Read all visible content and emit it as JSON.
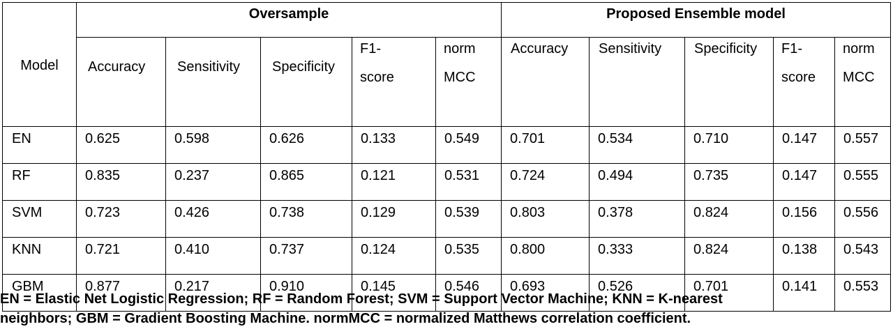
{
  "table": {
    "model_header": "Model",
    "groups": [
      "Oversample",
      "Proposed Ensemble model"
    ],
    "metrics": [
      {
        "line1": "Accuracy",
        "line2": ""
      },
      {
        "line1": "Sensitivity",
        "line2": ""
      },
      {
        "line1": "Specificity",
        "line2": ""
      },
      {
        "line1": "F1-",
        "line2": "score"
      },
      {
        "line1": "norm",
        "line2": "MCC"
      }
    ],
    "rows": [
      {
        "model": "EN",
        "oversample": [
          "0.625",
          "0.598",
          "0.626",
          "0.133",
          "0.549"
        ],
        "ensemble": [
          "0.701",
          "0.534",
          "0.710",
          "0.147",
          "0.557"
        ]
      },
      {
        "model": "RF",
        "oversample": [
          "0.835",
          "0.237",
          "0.865",
          "0.121",
          "0.531"
        ],
        "ensemble": [
          "0.724",
          "0.494",
          "0.735",
          "0.147",
          "0.555"
        ]
      },
      {
        "model": "SVM",
        "oversample": [
          "0.723",
          "0.426",
          "0.738",
          "0.129",
          "0.539"
        ],
        "ensemble": [
          "0.803",
          "0.378",
          "0.824",
          "0.156",
          "0.556"
        ]
      },
      {
        "model": "KNN",
        "oversample": [
          "0.721",
          "0.410",
          "0.737",
          "0.124",
          "0.535"
        ],
        "ensemble": [
          "0.800",
          "0.333",
          "0.824",
          "0.138",
          "0.543"
        ]
      },
      {
        "model": "GBM",
        "oversample": [
          "0.877",
          "0.217",
          "0.910",
          "0.145",
          "0.546"
        ],
        "ensemble": [
          "0.693",
          "0.526",
          "0.701",
          "0.141",
          "0.553"
        ]
      }
    ]
  },
  "footnote": "EN = Elastic Net Logistic Regression; RF = Random Forest; SVM = Support Vector Machine; KNN = K-nearest\nneighbors; GBM = Gradient Boosting Machine. normMCC = normalized Matthews correlation coefficient."
}
